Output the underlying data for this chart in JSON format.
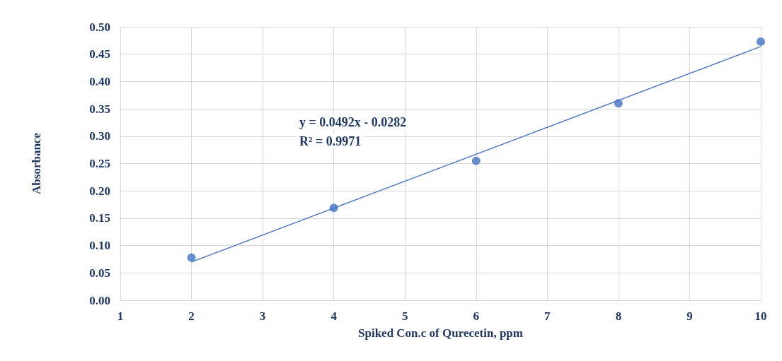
{
  "chart_data": {
    "type": "scatter",
    "xlabel": "Spiked Con.c of Qurecetin, ppm",
    "ylabel": "Absorbance",
    "annotations": [
      "y = 0.0492x - 0.0282",
      "R² = 0.9971"
    ],
    "series": [
      {
        "color": "#4472c4",
        "marker": "circle",
        "x": [
          2,
          4,
          6,
          8,
          10
        ],
        "values": [
          0.078,
          0.169,
          0.255,
          0.36,
          0.473
        ]
      },
      {
        "type": "line",
        "color": "#4472c4",
        "marker": "none",
        "line_style": "solid",
        "x": [
          2,
          10
        ],
        "values": [
          0.07,
          0.464
        ]
      }
    ],
    "xlim": [
      1,
      10
    ],
    "xticks": [
      1,
      2,
      3,
      4,
      5,
      6,
      7,
      8,
      9,
      10
    ],
    "ylim": [
      0,
      0.5
    ],
    "yticks": [
      {
        "value": 0,
        "label": "0.00"
      },
      {
        "value": 0.05,
        "label": "0.05"
      },
      {
        "value": 0.1,
        "label": "0.10"
      },
      {
        "value": 0.15,
        "label": "0.15"
      },
      {
        "value": 0.2,
        "label": "0.20"
      },
      {
        "value": 0.25,
        "label": "0.25"
      },
      {
        "value": 0.3,
        "label": "0.30"
      },
      {
        "value": 0.35,
        "label": "0.35"
      },
      {
        "value": 0.4,
        "label": "0.40"
      },
      {
        "value": 0.45,
        "label": "0.45"
      },
      {
        "value": 0.5,
        "label": "0.50"
      }
    ],
    "grid": true
  }
}
